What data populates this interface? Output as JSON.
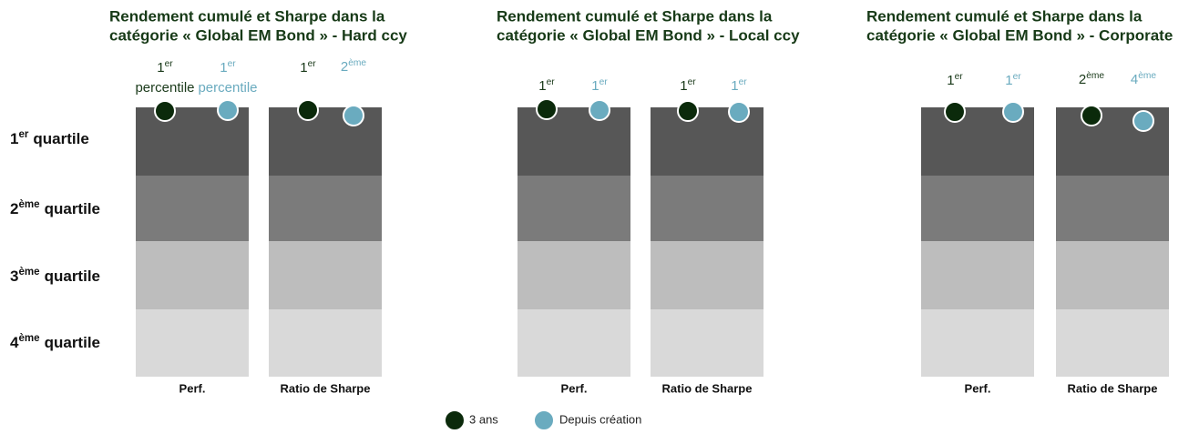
{
  "row_labels": [
    {
      "num": "1",
      "sup": "er",
      "text": "quartile"
    },
    {
      "num": "2",
      "sup": "ème",
      "text": "quartile"
    },
    {
      "num": "3",
      "sup": "ème",
      "text": "quartile"
    },
    {
      "num": "4",
      "sup": "ème",
      "text": "quartile"
    }
  ],
  "panels": [
    {
      "title_lines": [
        "Rendement cumulé et Sharpe dans la",
        "catégorie « Global EM Bond » - Hard ccy"
      ],
      "columns": [
        {
          "label": "Perf.",
          "markers": [
            {
              "num": "1",
              "sup": "er",
              "suffix": "percentile"
            },
            {
              "num": "1",
              "sup": "er",
              "suffix": "percentile"
            }
          ]
        },
        {
          "label": "Ratio de Sharpe",
          "markers": [
            {
              "num": "1",
              "sup": "er"
            },
            {
              "num": "2",
              "sup": "ème"
            }
          ]
        }
      ]
    },
    {
      "title_lines": [
        "Rendement cumulé et Sharpe dans la",
        "catégorie « Global EM Bond » - Local ccy"
      ],
      "columns": [
        {
          "label": "Perf.",
          "markers": [
            {
              "num": "1",
              "sup": "er"
            },
            {
              "num": "1",
              "sup": "er"
            }
          ]
        },
        {
          "label": "Ratio de Sharpe",
          "markers": [
            {
              "num": "1",
              "sup": "er"
            },
            {
              "num": "1",
              "sup": "er"
            }
          ]
        }
      ]
    },
    {
      "title_lines": [
        "Rendement cumulé et Sharpe dans la",
        "catégorie « Global EM Bond » - Corporate"
      ],
      "columns": [
        {
          "label": "Perf.",
          "markers": [
            {
              "num": "1",
              "sup": "er"
            },
            {
              "num": "1",
              "sup": "er"
            }
          ]
        },
        {
          "label": "Ratio de Sharpe",
          "markers": [
            {
              "num": "2",
              "sup": "ème"
            },
            {
              "num": "4",
              "sup": "ème"
            }
          ]
        }
      ]
    }
  ],
  "legend": [
    {
      "label": "3 ans",
      "color": "#0b2a0b"
    },
    {
      "label": "Depuis création",
      "color": "#6aabbf"
    }
  ]
}
